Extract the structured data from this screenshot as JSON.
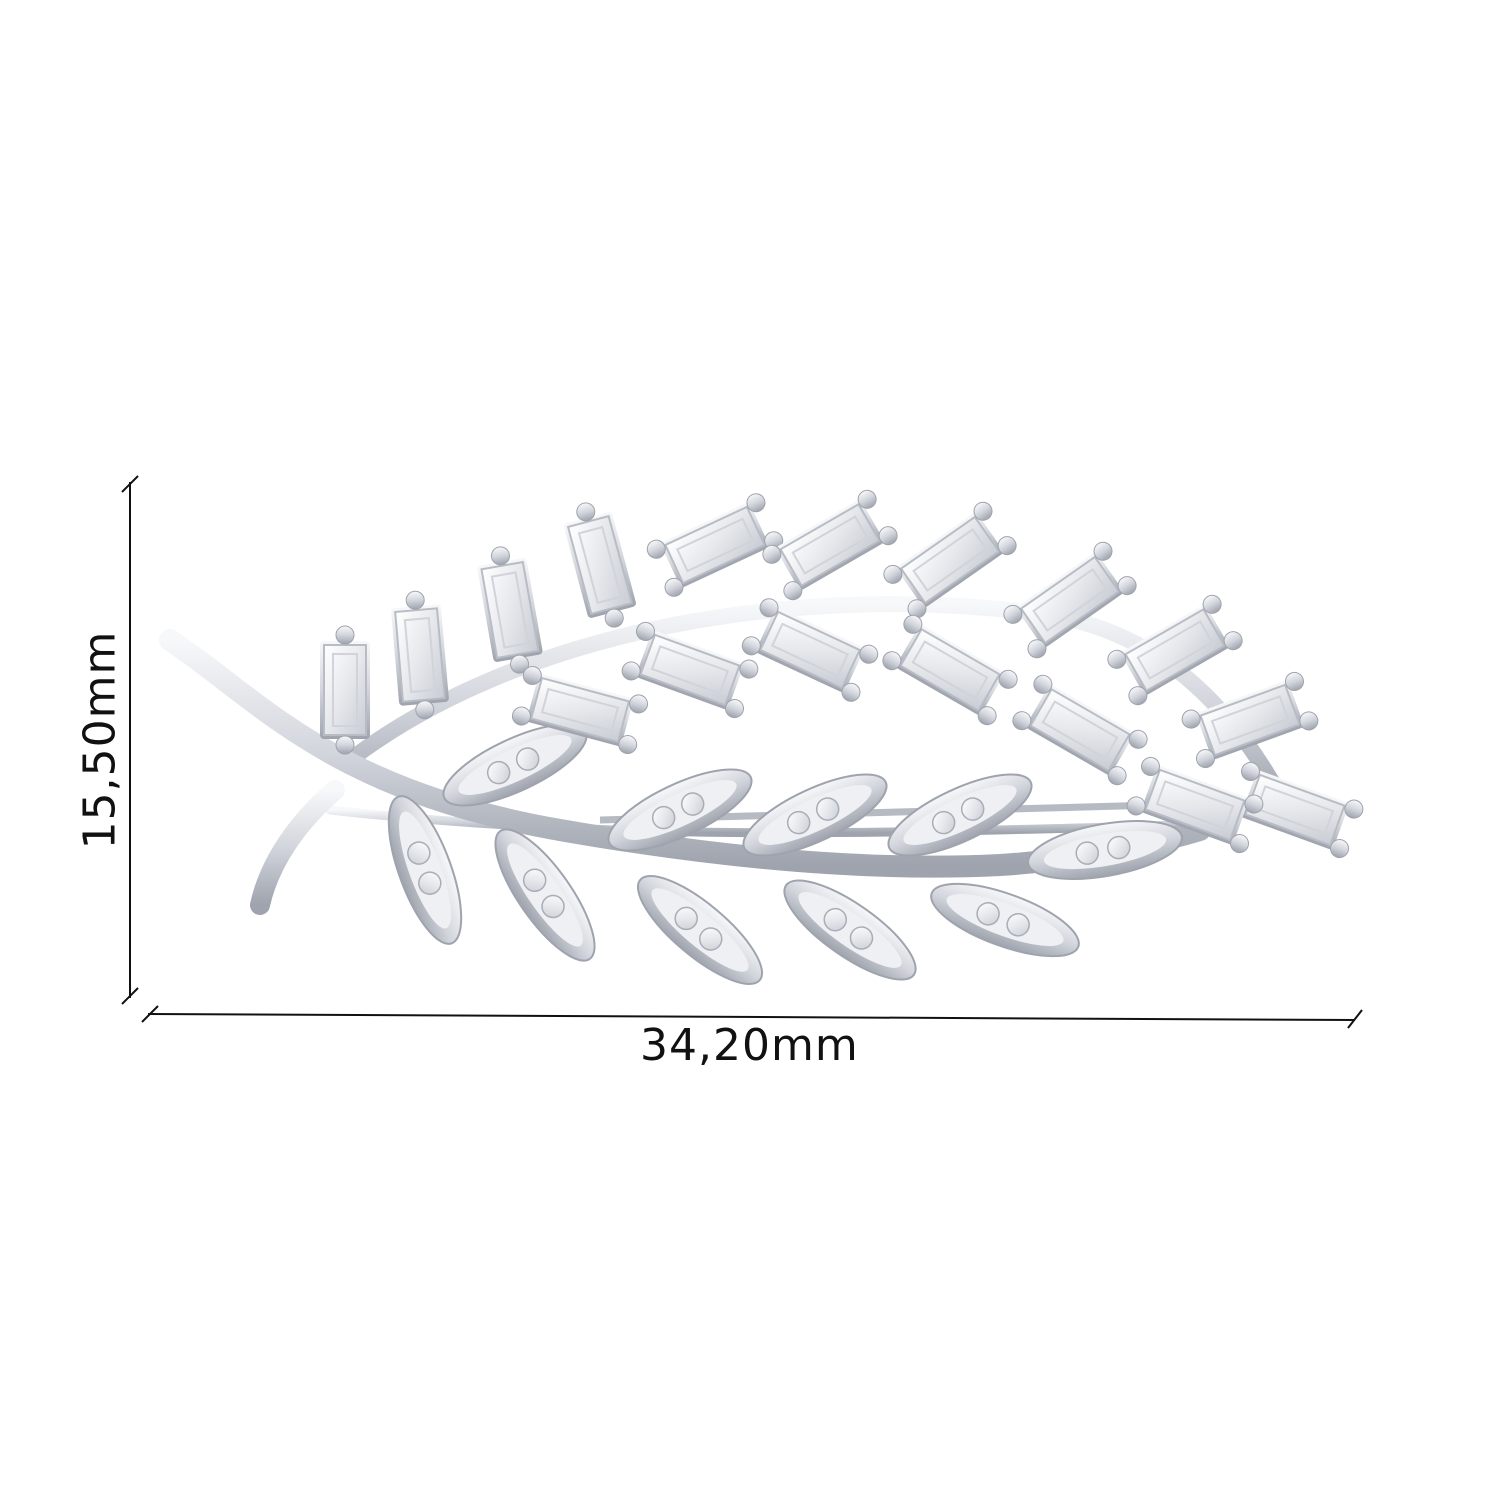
{
  "product": {
    "description_visible": "",
    "metal_color": "#d9dce2",
    "stone_color": "#f4f5f7"
  },
  "dimensions": {
    "width_label": "34,20mm",
    "height_label": "15,50mm"
  }
}
